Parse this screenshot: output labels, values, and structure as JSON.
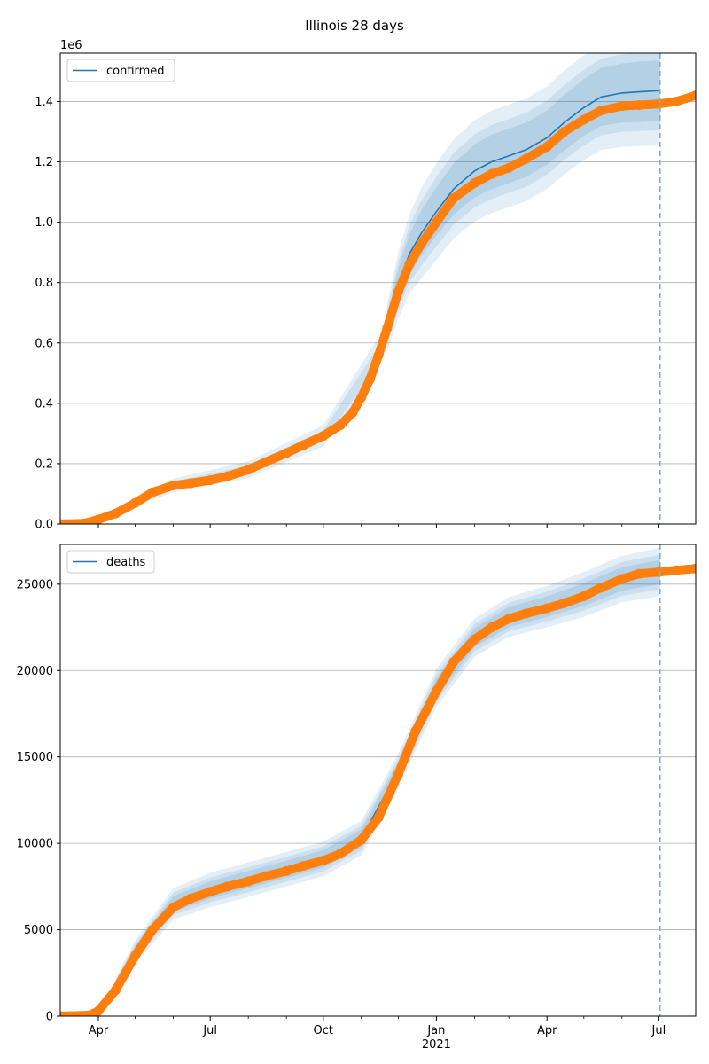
{
  "figure": {
    "title": "Illinois 28 days"
  },
  "colors": {
    "model": "#1f77b4",
    "observed": "#ff7f0e",
    "band": "#1f77b4",
    "grid": "#b0b0b0",
    "forecast_line": "#7aafdc"
  },
  "x_axis": {
    "range": [
      "2020-03-01",
      "2021-07-31"
    ],
    "ticks": [
      {
        "date": "2020-04-01",
        "label": "Apr",
        "sublabel": ""
      },
      {
        "date": "2020-07-01",
        "label": "Jul",
        "sublabel": ""
      },
      {
        "date": "2020-10-01",
        "label": "Oct",
        "sublabel": ""
      },
      {
        "date": "2021-01-01",
        "label": "Jan",
        "sublabel": "2021"
      },
      {
        "date": "2021-04-01",
        "label": "Apr",
        "sublabel": ""
      },
      {
        "date": "2021-07-01",
        "label": "Jul",
        "sublabel": ""
      }
    ],
    "forecast_start": "2021-07-02"
  },
  "chart_data": [
    {
      "type": "line",
      "title": "",
      "legend": {
        "label": "confirmed",
        "placement": "top-left"
      },
      "ylim": [
        0,
        1560000
      ],
      "offset_label": "1e6",
      "yticks": [
        {
          "value": 0,
          "label": "0.0"
        },
        {
          "value": 200000,
          "label": "0.2"
        },
        {
          "value": 400000,
          "label": "0.4"
        },
        {
          "value": 600000,
          "label": "0.6"
        },
        {
          "value": 800000,
          "label": "0.8"
        },
        {
          "value": 1000000,
          "label": "1.0"
        },
        {
          "value": 1200000,
          "label": "1.2"
        },
        {
          "value": 1400000,
          "label": "1.4"
        }
      ],
      "grid": true,
      "observed": {
        "dates": [
          "2020-03-01",
          "2020-03-20",
          "2020-04-01",
          "2020-04-15",
          "2020-05-01",
          "2020-05-15",
          "2020-06-01",
          "2020-06-15",
          "2020-07-01",
          "2020-07-15",
          "2020-08-01",
          "2020-08-15",
          "2020-09-01",
          "2020-09-15",
          "2020-10-01",
          "2020-10-15",
          "2020-10-25",
          "2020-11-01",
          "2020-11-08",
          "2020-11-15",
          "2020-11-22",
          "2020-12-01",
          "2020-12-10",
          "2020-12-20",
          "2021-01-01",
          "2021-01-15",
          "2021-02-01",
          "2021-02-15",
          "2021-03-01",
          "2021-03-15",
          "2021-04-01",
          "2021-04-15",
          "2021-05-01",
          "2021-05-15",
          "2021-06-01",
          "2021-06-15",
          "2021-07-01",
          "2021-07-15",
          "2021-07-31"
        ],
        "values": [
          0,
          2000,
          15000,
          35000,
          70000,
          105000,
          128000,
          135000,
          145000,
          158000,
          180000,
          205000,
          235000,
          262000,
          292000,
          328000,
          370000,
          420000,
          480000,
          560000,
          650000,
          770000,
          860000,
          930000,
          1000000,
          1080000,
          1130000,
          1160000,
          1180000,
          1210000,
          1250000,
          1300000,
          1340000,
          1370000,
          1385000,
          1388000,
          1392000,
          1400000,
          1420000
        ]
      },
      "model": {
        "dates": [
          "2020-11-22",
          "2020-12-01",
          "2020-12-10",
          "2020-12-20",
          "2021-01-01",
          "2021-01-15",
          "2021-02-01",
          "2021-02-15",
          "2021-03-01",
          "2021-03-15",
          "2021-04-01",
          "2021-04-15",
          "2021-05-01",
          "2021-05-15",
          "2021-06-01",
          "2021-06-15",
          "2021-07-02"
        ],
        "values": [
          650000,
          790000,
          895000,
          965000,
          1035000,
          1110000,
          1170000,
          1200000,
          1220000,
          1240000,
          1280000,
          1330000,
          1380000,
          1415000,
          1428000,
          1432000,
          1436000
        ],
        "band_outer": [
          80000,
          110000,
          130000,
          150000,
          160000,
          165000,
          168000,
          170000,
          170000,
          170000,
          170000,
          172000,
          174000,
          176000,
          178000,
          180000,
          182000
        ],
        "band_inner": [
          35000,
          55000,
          65000,
          75000,
          80000,
          85000,
          88000,
          90000,
          90000,
          90000,
          90000,
          92000,
          94000,
          96000,
          98000,
          100000,
          100000
        ]
      },
      "band_history": [
        {
          "date": "2020-05-01",
          "outer": 12000,
          "inner": 6000
        },
        {
          "date": "2020-06-01",
          "outer": 22000,
          "inner": 12000
        },
        {
          "date": "2020-08-01",
          "outer": 28000,
          "inner": 14000
        },
        {
          "date": "2020-10-01",
          "outer": 35000,
          "inner": 18000
        },
        {
          "date": "2020-11-15",
          "outer": 60000,
          "inner": 30000
        }
      ]
    },
    {
      "type": "line",
      "title": "",
      "legend": {
        "label": "deaths",
        "placement": "top-left"
      },
      "ylim": [
        0,
        27300
      ],
      "offset_label": "",
      "yticks": [
        {
          "value": 0,
          "label": "0"
        },
        {
          "value": 5000,
          "label": "5000"
        },
        {
          "value": 10000,
          "label": "10000"
        },
        {
          "value": 15000,
          "label": "15000"
        },
        {
          "value": 20000,
          "label": "20000"
        },
        {
          "value": 25000,
          "label": "25000"
        }
      ],
      "grid": true,
      "observed": {
        "dates": [
          "2020-03-01",
          "2020-03-25",
          "2020-04-01",
          "2020-04-15",
          "2020-05-01",
          "2020-05-15",
          "2020-06-01",
          "2020-06-15",
          "2020-07-01",
          "2020-07-15",
          "2020-08-01",
          "2020-08-15",
          "2020-09-01",
          "2020-09-15",
          "2020-10-01",
          "2020-10-15",
          "2020-11-01",
          "2020-11-15",
          "2020-12-01",
          "2020-12-15",
          "2021-01-01",
          "2021-01-15",
          "2021-02-01",
          "2021-02-15",
          "2021-03-01",
          "2021-03-15",
          "2021-04-01",
          "2021-04-15",
          "2021-05-01",
          "2021-05-15",
          "2021-06-01",
          "2021-06-15",
          "2021-07-01",
          "2021-07-15",
          "2021-07-31"
        ],
        "values": [
          0,
          50,
          300,
          1500,
          3500,
          5000,
          6300,
          6800,
          7200,
          7500,
          7800,
          8100,
          8400,
          8700,
          9000,
          9400,
          10200,
          11500,
          14000,
          16500,
          18800,
          20500,
          21800,
          22500,
          23000,
          23300,
          23600,
          23900,
          24300,
          24800,
          25300,
          25600,
          25700,
          25800,
          25900
        ]
      },
      "model": {
        "dates": [
          "2020-04-15",
          "2020-05-01",
          "2020-06-01",
          "2020-07-01",
          "2020-08-01",
          "2020-09-01",
          "2020-10-01",
          "2020-11-01",
          "2020-12-01",
          "2021-01-01",
          "2021-02-01",
          "2021-03-01",
          "2021-04-01",
          "2021-05-01",
          "2021-06-01",
          "2021-07-02"
        ],
        "values": [
          1700,
          3700,
          6500,
          7300,
          7900,
          8500,
          9100,
          10300,
          14200,
          19000,
          21900,
          23100,
          23700,
          24400,
          25300,
          25700
        ],
        "band_outer": [
          500,
          700,
          900,
          1000,
          1000,
          1000,
          1000,
          1000,
          1000,
          1100,
          1100,
          1150,
          1200,
          1300,
          1350,
          1400
        ],
        "band_inner": [
          250,
          350,
          450,
          500,
          500,
          500,
          500,
          500,
          500,
          550,
          550,
          580,
          600,
          650,
          680,
          700
        ]
      }
    }
  ]
}
